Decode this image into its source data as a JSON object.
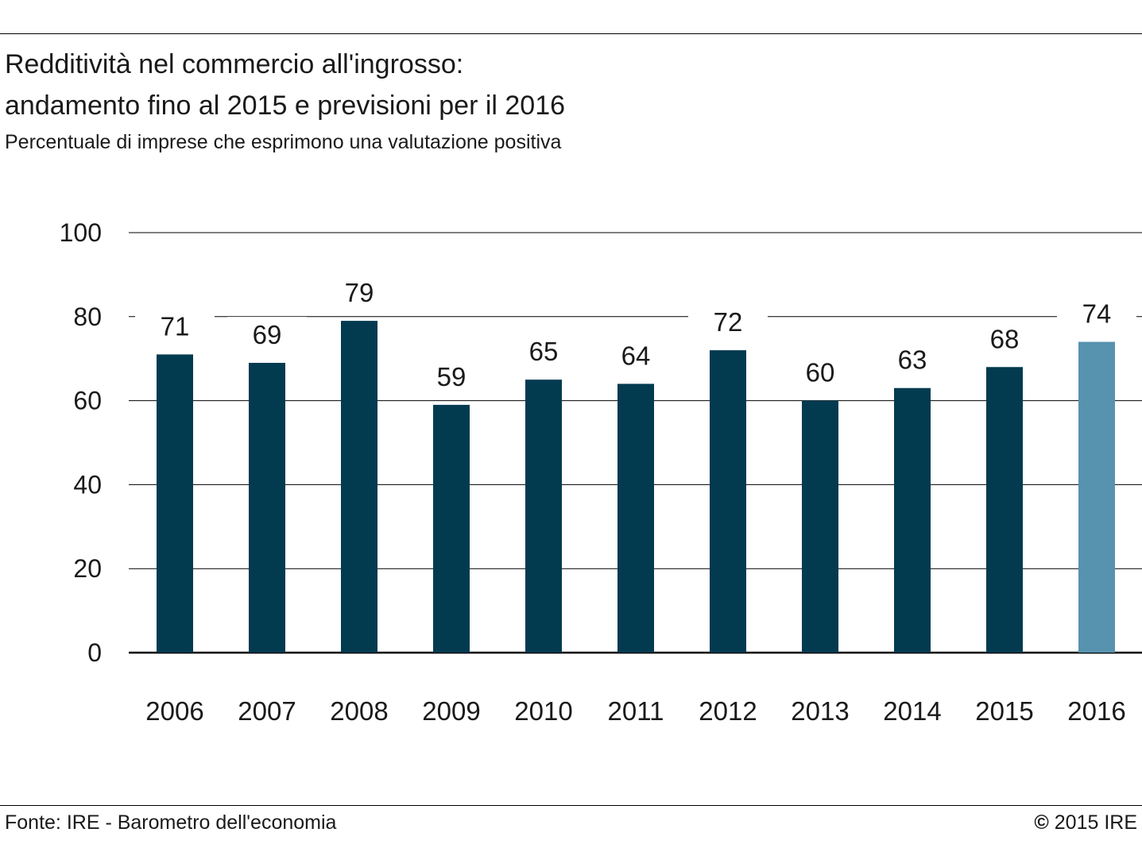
{
  "header": {
    "title_line1": "Redditività nel commercio all'ingrosso:",
    "title_line2": "andamento fino al 2015 e previsioni per il 2016",
    "subtitle": "Percentuale di imprese che esprimono una valutazione positiva"
  },
  "footer": {
    "source": "Fonte: IRE - Barometro dell'economia",
    "copyright_symbol": "©",
    "copyright_text": " 2015 IRE"
  },
  "colors": {
    "bar": "#023a50",
    "forecast_bar": "#5792ae",
    "grid": "#000000"
  },
  "chart_data": {
    "type": "bar",
    "title": "Redditività nel commercio all'ingrosso: andamento fino al 2015 e previsioni per il 2016",
    "subtitle": "Percentuale di imprese che esprimono una valutazione positiva",
    "xlabel": "",
    "ylabel": "",
    "categories": [
      "2006",
      "2007",
      "2008",
      "2009",
      "2010",
      "2011",
      "2012",
      "2013",
      "2014",
      "2015",
      "2016"
    ],
    "values": [
      71,
      69,
      79,
      59,
      65,
      64,
      72,
      60,
      63,
      68,
      74
    ],
    "data_labels": [
      "71",
      "69",
      "79",
      "59",
      "65",
      "64",
      "72",
      "60",
      "63",
      "68",
      "74"
    ],
    "forecast_categories": [
      "2016"
    ],
    "ylim": [
      0,
      100
    ],
    "yticks": [
      0,
      20,
      40,
      60,
      80,
      100
    ],
    "ytick_labels": [
      "0",
      "20",
      "40",
      "60",
      "80",
      "100"
    ],
    "grid": true,
    "legend": "none"
  }
}
